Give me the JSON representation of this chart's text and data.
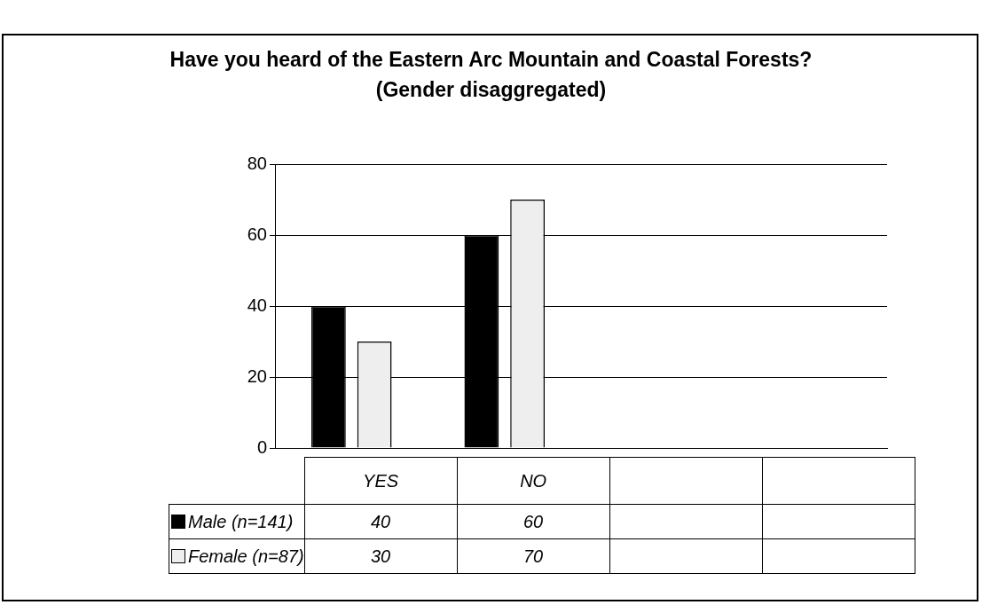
{
  "chart_data": {
    "type": "bar",
    "title": "Have you heard of the Eastern Arc Mountain and Coastal Forests?\n(Gender disaggregated)",
    "categories": [
      "YES",
      "NO",
      null,
      null
    ],
    "series": [
      {
        "name": "Male (n=141)",
        "color": "#000000",
        "values": [
          40,
          60,
          null,
          null
        ]
      },
      {
        "name": "Female (n=87)",
        "color": "#eeeeee",
        "values": [
          30,
          70,
          null,
          null
        ]
      }
    ],
    "ylim": [
      0,
      80
    ],
    "yticks": [
      0,
      20,
      40,
      60,
      80
    ],
    "grid": "y",
    "legend": "bottom left",
    "data_labels": true
  }
}
